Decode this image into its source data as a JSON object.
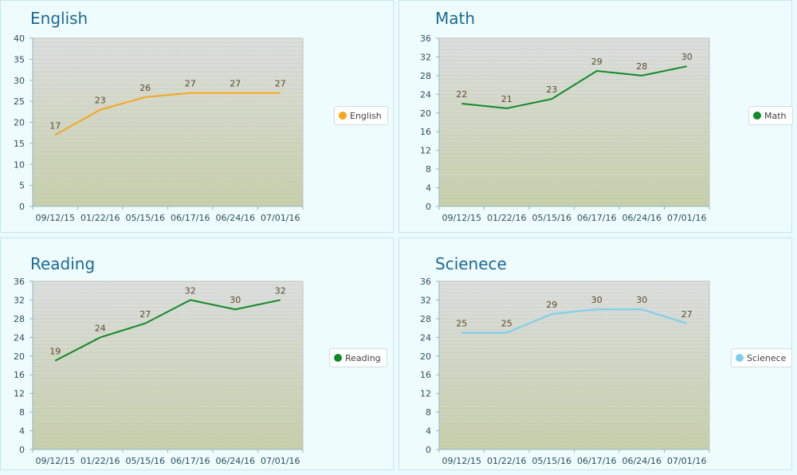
{
  "chart_data": [
    {
      "type": "line",
      "title": "English",
      "categories": [
        "09/12/15",
        "01/22/16",
        "05/15/16",
        "06/17/16",
        "06/24/16",
        "07/01/16"
      ],
      "series": [
        {
          "name": "English",
          "values": [
            17,
            23,
            26,
            27,
            27,
            27
          ],
          "color": "#f7a51c"
        }
      ],
      "ylim": [
        0,
        40
      ],
      "yticks": [
        0,
        5,
        10,
        15,
        20,
        25,
        30,
        35,
        40
      ],
      "grid": true,
      "legend_position": "right"
    },
    {
      "type": "line",
      "title": "Math",
      "categories": [
        "09/12/15",
        "01/22/16",
        "05/15/16",
        "06/17/16",
        "06/24/16",
        "07/01/16"
      ],
      "series": [
        {
          "name": "Math",
          "values": [
            22,
            21,
            23,
            29,
            28,
            30
          ],
          "color": "#0f8a25"
        }
      ],
      "ylim": [
        0,
        36
      ],
      "yticks": [
        0,
        4,
        8,
        12,
        16,
        20,
        24,
        28,
        32,
        36
      ],
      "grid": true,
      "legend_position": "right"
    },
    {
      "type": "line",
      "title": "Reading",
      "categories": [
        "09/12/15",
        "01/22/16",
        "05/15/16",
        "06/17/16",
        "06/24/16",
        "07/01/16"
      ],
      "series": [
        {
          "name": "Reading",
          "values": [
            19,
            24,
            27,
            32,
            30,
            32
          ],
          "color": "#0f8a25"
        }
      ],
      "ylim": [
        0,
        36
      ],
      "yticks": [
        0,
        4,
        8,
        12,
        16,
        20,
        24,
        28,
        32,
        36
      ],
      "grid": true,
      "legend_position": "right"
    },
    {
      "type": "line",
      "title": "Scienece",
      "categories": [
        "09/12/15",
        "01/22/16",
        "05/15/16",
        "06/17/16",
        "06/24/16",
        "07/01/16"
      ],
      "series": [
        {
          "name": "Scienece",
          "values": [
            25,
            25,
            29,
            30,
            30,
            27
          ],
          "color": "#7ccfee"
        }
      ],
      "ylim": [
        0,
        36
      ],
      "yticks": [
        0,
        4,
        8,
        12,
        16,
        20,
        24,
        28,
        32,
        36
      ],
      "grid": true,
      "legend_position": "right"
    }
  ]
}
